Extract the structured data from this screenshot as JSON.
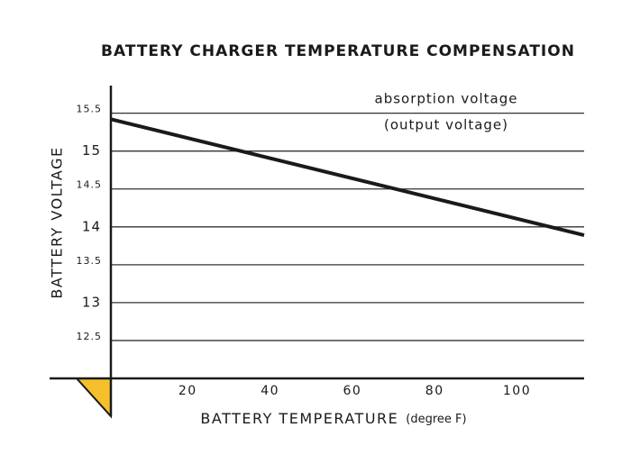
{
  "chart_data": {
    "type": "line",
    "title": "BATTERY CHARGER TEMPERATURE COMPENSATION",
    "x_label": "BATTERY TEMPERATURE",
    "x_unit": "(degree F)",
    "y_label": "BATTERY VOLTAGE",
    "x": [
      0,
      115
    ],
    "series": [
      {
        "name": "absorption voltage",
        "color": "#1a1a1a",
        "values": [
          15.42,
          13.89
        ]
      }
    ],
    "annotation": "(output voltage)",
    "xlim": [
      0,
      115
    ],
    "xticks": [
      20,
      40,
      60,
      80,
      100
    ],
    "ylim": [
      12,
      15.9
    ],
    "yticks": [
      12.5,
      13,
      13.5,
      14,
      14.5,
      15,
      15.5
    ],
    "grid": true
  }
}
